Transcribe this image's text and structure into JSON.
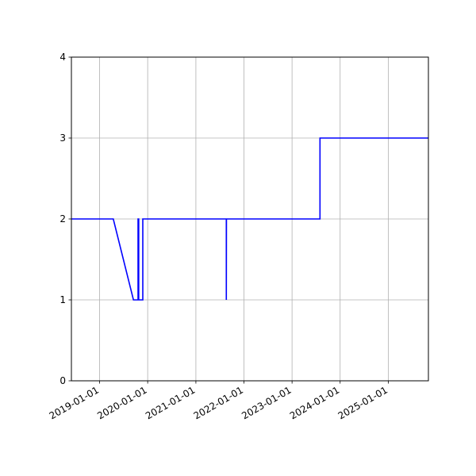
{
  "chart_data": {
    "type": "line",
    "title": "",
    "xlabel": "",
    "ylabel": "",
    "x_axis": "date",
    "xlim": [
      "2018-06-01",
      "2025-11-01"
    ],
    "ylim": [
      0,
      4
    ],
    "grid": true,
    "legend": "none",
    "x_ticks": [
      "2019-01-01",
      "2020-01-01",
      "2021-01-01",
      "2022-01-01",
      "2023-01-01",
      "2024-01-01",
      "2025-01-01"
    ],
    "y_ticks": [
      0,
      1,
      2,
      3,
      4
    ],
    "series": [
      {
        "color": "#0000ff",
        "x": [
          "2018-06-01",
          "2019-04-15",
          "2019-09-15",
          "2019-10-20",
          "2019-10-20",
          "2019-10-25",
          "2019-10-25",
          "2019-11-25",
          "2019-11-25",
          "2021-08-20",
          "2021-08-20",
          "2021-08-21",
          "2023-08-01",
          "2023-08-01",
          "2025-11-01"
        ],
        "y": [
          2,
          2,
          1,
          1,
          2,
          2,
          1,
          1,
          2,
          2,
          1,
          2,
          2,
          3,
          3
        ]
      }
    ]
  }
}
